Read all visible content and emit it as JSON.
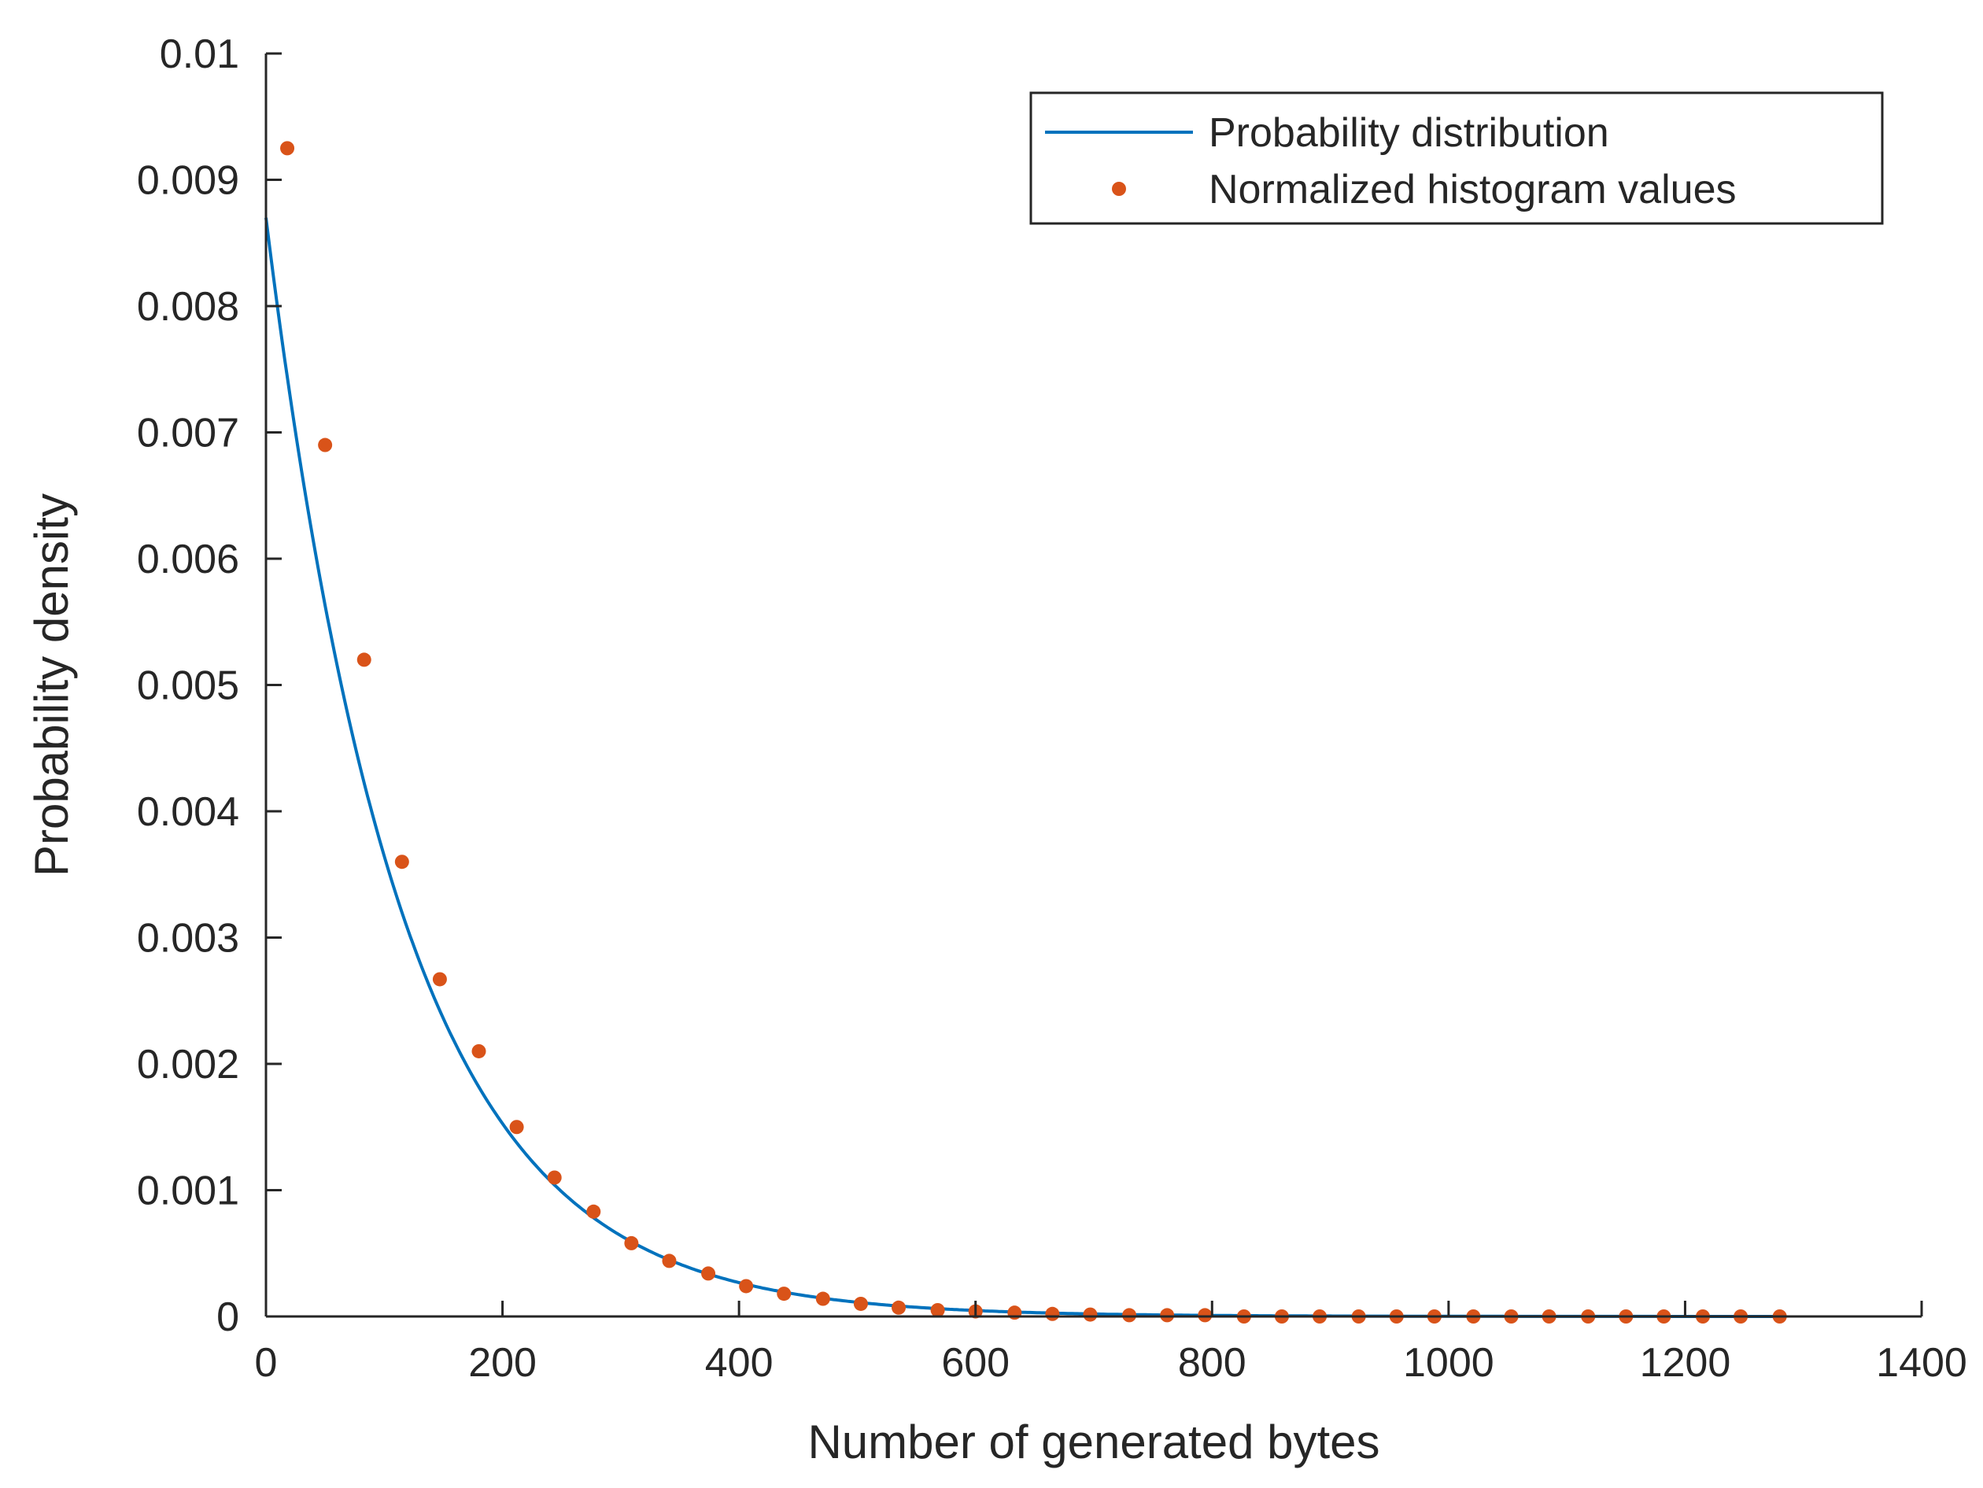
{
  "chart_data": {
    "type": "line",
    "title": "",
    "xlabel": "Number of generated bytes",
    "ylabel": "Probability density",
    "xlim": [
      0,
      1400
    ],
    "ylim": [
      0,
      0.01
    ],
    "xticks": [
      0,
      200,
      400,
      600,
      800,
      1000,
      1200,
      1400
    ],
    "xtick_labels": [
      "0",
      "200",
      "400",
      "600",
      "800",
      "1000",
      "1200",
      "1400"
    ],
    "yticks": [
      0,
      0.001,
      0.002,
      0.003,
      0.004,
      0.005,
      0.006,
      0.007,
      0.008,
      0.009,
      0.01
    ],
    "ytick_labels": [
      "0",
      "0.001",
      "0.002",
      "0.003",
      "0.004",
      "0.005",
      "0.006",
      "0.007",
      "0.008",
      "0.009",
      "0.01"
    ],
    "grid": false,
    "legend_position": "top-right",
    "series": [
      {
        "name": "Probability distribution",
        "kind": "line",
        "color": "#0072bd",
        "model": "exponential",
        "rate": 0.0087,
        "x_start": 0,
        "x_end": 1285
      },
      {
        "name": "Normalized histogram values",
        "kind": "scatter",
        "color": "#d95319",
        "x": [
          18,
          50,
          83,
          115,
          147,
          180,
          212,
          244,
          277,
          309,
          341,
          374,
          406,
          438,
          471,
          503,
          535,
          568,
          600,
          633,
          665,
          697,
          730,
          762,
          794,
          827,
          859,
          891,
          924,
          956,
          988,
          1021,
          1053,
          1085,
          1118,
          1150,
          1182,
          1215,
          1247,
          1280
        ],
        "y": [
          0.00925,
          0.0069,
          0.0052,
          0.0036,
          0.00267,
          0.0021,
          0.0015,
          0.0011,
          0.00083,
          0.00058,
          0.00044,
          0.00034,
          0.00024,
          0.00018,
          0.00014,
          0.0001,
          7e-05,
          5e-05,
          4e-05,
          3e-05,
          2e-05,
          1.5e-05,
          1e-05,
          1e-05,
          1e-05,
          0,
          0,
          0,
          0,
          0,
          0,
          0,
          0,
          0,
          0,
          0,
          0,
          0,
          0,
          0
        ]
      }
    ]
  }
}
